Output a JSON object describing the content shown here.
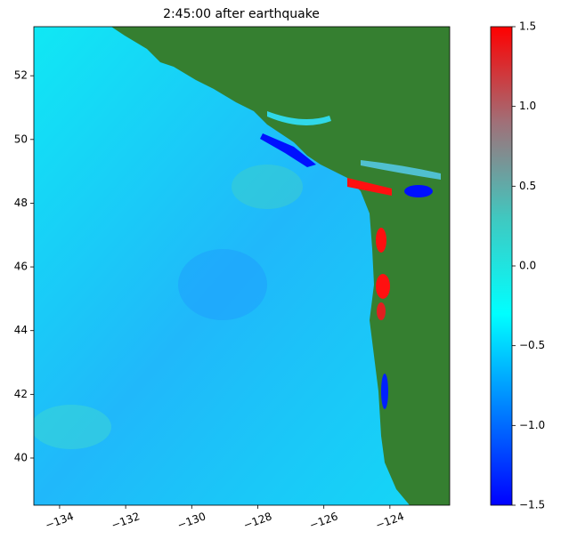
{
  "chart_data": {
    "type": "heatmap",
    "title": "2:45:00 after earthquake",
    "xlim": [
      -134.78,
      -122.19
    ],
    "ylim": [
      38.52,
      53.54
    ],
    "xticks": [
      {
        "value": -134,
        "label": "−134"
      },
      {
        "value": -132,
        "label": "−132"
      },
      {
        "value": -130,
        "label": "−130"
      },
      {
        "value": -128,
        "label": "−128"
      },
      {
        "value": -126,
        "label": "−126"
      },
      {
        "value": -124,
        "label": "−124"
      }
    ],
    "yticks": [
      40,
      42,
      44,
      46,
      48,
      50,
      52
    ],
    "colorbar": {
      "lim": [
        -1.5,
        1.5
      ],
      "ticks": [
        {
          "value": -1.5,
          "label": "−1.5"
        },
        {
          "value": -1.0,
          "label": "−1.0"
        },
        {
          "value": -0.5,
          "label": "−0.5"
        },
        {
          "value": 0,
          "label": "0.0"
        },
        0.5,
        {
          "value": 1.0,
          "label": "1.0"
        },
        1.5
      ],
      "colors": [
        "#0000ff",
        "#0080ff",
        "#00ffff",
        "#40c8c0",
        "#a07078",
        "#ff0000"
      ]
    }
  }
}
